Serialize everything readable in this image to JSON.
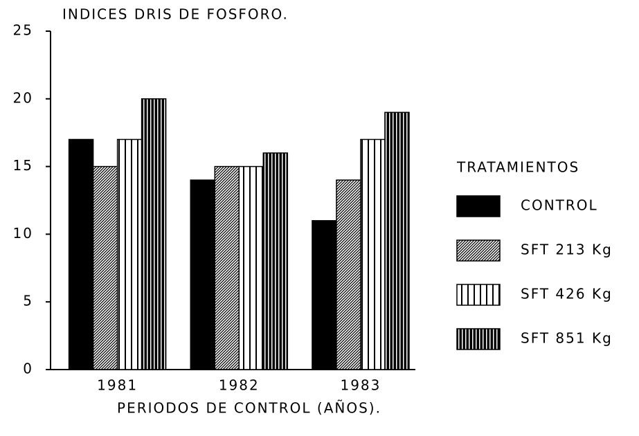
{
  "chart_data": {
    "type": "bar",
    "title": "INDICES DRIS DE FOSFORO.",
    "x_label": "PERIODOS DE CONTROL (AÑOS).",
    "legend_title": "TRATAMIENTOS",
    "legend": "right",
    "categories": [
      "1981",
      "1982",
      "1983"
    ],
    "series": [
      {
        "name": "CONTROL",
        "color": "#000000",
        "pattern": "solid",
        "values": [
          17,
          14,
          11
        ]
      },
      {
        "name": "SFT 213 Kg",
        "color": "#000000",
        "pattern": "diagonal",
        "values": [
          15,
          15,
          14
        ]
      },
      {
        "name": "SFT 426 Kg",
        "color": "#000000",
        "pattern": "vertical-wide",
        "values": [
          17,
          15,
          17
        ]
      },
      {
        "name": "SFT 851 Kg",
        "color": "#000000",
        "pattern": "vertical-dense",
        "values": [
          20,
          16,
          19
        ]
      }
    ],
    "ylim": [
      0,
      25
    ],
    "yticks": [
      0,
      5,
      10,
      15,
      20,
      25
    ]
  }
}
